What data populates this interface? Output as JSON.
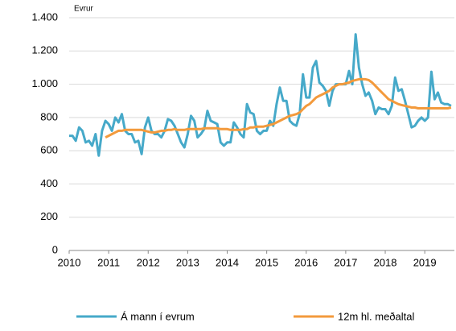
{
  "chart_data": {
    "type": "line",
    "y_axis_label": "Evrur",
    "x": [
      2010,
      2010.083,
      2010.167,
      2010.25,
      2010.333,
      2010.417,
      2010.5,
      2010.583,
      2010.667,
      2010.75,
      2010.833,
      2010.917,
      2011,
      2011.083,
      2011.167,
      2011.25,
      2011.333,
      2011.417,
      2011.5,
      2011.583,
      2011.667,
      2011.75,
      2011.833,
      2011.917,
      2012,
      2012.083,
      2012.167,
      2012.25,
      2012.333,
      2012.417,
      2012.5,
      2012.583,
      2012.667,
      2012.75,
      2012.833,
      2012.917,
      2013,
      2013.083,
      2013.167,
      2013.25,
      2013.333,
      2013.417,
      2013.5,
      2013.583,
      2013.667,
      2013.75,
      2013.833,
      2013.917,
      2014,
      2014.083,
      2014.167,
      2014.25,
      2014.333,
      2014.417,
      2014.5,
      2014.583,
      2014.667,
      2014.75,
      2014.833,
      2014.917,
      2015,
      2015.083,
      2015.167,
      2015.25,
      2015.333,
      2015.417,
      2015.5,
      2015.583,
      2015.667,
      2015.75,
      2015.833,
      2015.917,
      2016,
      2016.083,
      2016.167,
      2016.25,
      2016.333,
      2016.417,
      2016.5,
      2016.583,
      2016.667,
      2016.75,
      2016.833,
      2016.917,
      2017,
      2017.083,
      2017.167,
      2017.25,
      2017.333,
      2017.417,
      2017.5,
      2017.583,
      2017.667,
      2017.75,
      2017.833,
      2017.917,
      2018,
      2018.083,
      2018.167,
      2018.25,
      2018.333,
      2018.417,
      2018.5,
      2018.583,
      2018.667,
      2018.75,
      2018.833,
      2018.917,
      2019,
      2019.083,
      2019.167,
      2019.25,
      2019.333,
      2019.417,
      2019.5,
      2019.583,
      2019.667
    ],
    "series": [
      {
        "name": "Á mann í evrum",
        "color": "#46a9c9",
        "values": [
          690,
          690,
          660,
          740,
          720,
          650,
          660,
          630,
          700,
          570,
          720,
          780,
          760,
          720,
          800,
          770,
          820,
          720,
          700,
          700,
          650,
          660,
          580,
          740,
          800,
          720,
          700,
          700,
          680,
          720,
          790,
          780,
          750,
          700,
          650,
          620,
          700,
          810,
          780,
          680,
          700,
          730,
          840,
          780,
          770,
          760,
          650,
          630,
          650,
          650,
          770,
          740,
          700,
          680,
          880,
          830,
          820,
          720,
          700,
          720,
          720,
          780,
          750,
          880,
          980,
          900,
          900,
          780,
          760,
          750,
          820,
          1060,
          920,
          920,
          1100,
          1140,
          1010,
          990,
          960,
          870,
          960,
          1000,
          1000,
          1000,
          1000,
          1080,
          1000,
          1300,
          1100,
          1000,
          930,
          950,
          900,
          820,
          860,
          850,
          850,
          820,
          870,
          1040,
          960,
          970,
          900,
          820,
          740,
          750,
          780,
          800,
          780,
          800,
          1075,
          910,
          950,
          890,
          880,
          880,
          870
        ]
      },
      {
        "name": "12m hl. meðaltal",
        "color": "#f39a3c",
        "values": [
          null,
          null,
          null,
          null,
          null,
          null,
          null,
          null,
          null,
          null,
          null,
          680,
          690,
          700,
          710,
          720,
          720,
          725,
          725,
          725,
          725,
          725,
          725,
          720,
          715,
          710,
          710,
          715,
          720,
          720,
          725,
          725,
          730,
          725,
          725,
          725,
          730,
          730,
          730,
          730,
          730,
          735,
          735,
          735,
          735,
          735,
          730,
          730,
          730,
          725,
          725,
          725,
          725,
          730,
          730,
          740,
          740,
          745,
          745,
          745,
          750,
          755,
          760,
          770,
          780,
          790,
          800,
          810,
          815,
          820,
          830,
          850,
          870,
          880,
          900,
          920,
          930,
          940,
          950,
          960,
          980,
          990,
          1000,
          1000,
          1005,
          1010,
          1020,
          1025,
          1030,
          1030,
          1030,
          1025,
          1010,
          990,
          970,
          950,
          930,
          910,
          900,
          890,
          880,
          875,
          870,
          865,
          860,
          860,
          855,
          855,
          855,
          855,
          855,
          855,
          855,
          855,
          855,
          855,
          860
        ]
      }
    ],
    "xlim": [
      2010,
      2019.75
    ],
    "xticks": [
      2010,
      2011,
      2012,
      2013,
      2014,
      2015,
      2016,
      2017,
      2018,
      2019
    ],
    "ylim": [
      0,
      1400
    ],
    "yticks": [
      0,
      200,
      400,
      600,
      800,
      {
        "value": 1000,
        "label": "1.000"
      },
      {
        "value": 1200,
        "label": "1.200"
      },
      {
        "value": 1400,
        "label": "1.400"
      }
    ],
    "grid": true,
    "legend": "bottom"
  }
}
